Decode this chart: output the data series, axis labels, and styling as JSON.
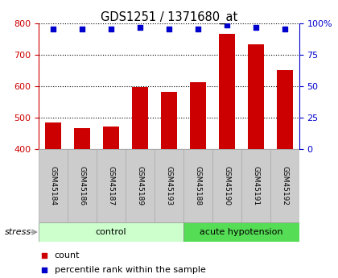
{
  "title": "GDS1251 / 1371680_at",
  "categories": [
    "GSM45184",
    "GSM45186",
    "GSM45187",
    "GSM45189",
    "GSM45193",
    "GSM45188",
    "GSM45190",
    "GSM45191",
    "GSM45192"
  ],
  "counts": [
    483,
    465,
    472,
    598,
    583,
    613,
    768,
    735,
    652
  ],
  "percentiles": [
    96,
    96,
    96,
    97,
    96,
    96,
    99,
    97,
    96
  ],
  "ylim_left": [
    400,
    800
  ],
  "ylim_right": [
    0,
    100
  ],
  "yticks_left": [
    400,
    500,
    600,
    700,
    800
  ],
  "yticks_right": [
    0,
    25,
    50,
    75,
    100
  ],
  "bar_color": "#cc0000",
  "dot_color": "#0000cc",
  "control_color": "#ccffcc",
  "acute_color": "#55dd55",
  "tick_bg_color": "#cccccc",
  "stress_arrow_color": "#999999",
  "left_axis_color": "#cc0000",
  "right_axis_color": "#0000cc",
  "bar_width": 0.55,
  "n_control": 5,
  "n_acute": 4,
  "fig_width": 4.2,
  "fig_height": 3.45,
  "dpi": 100
}
